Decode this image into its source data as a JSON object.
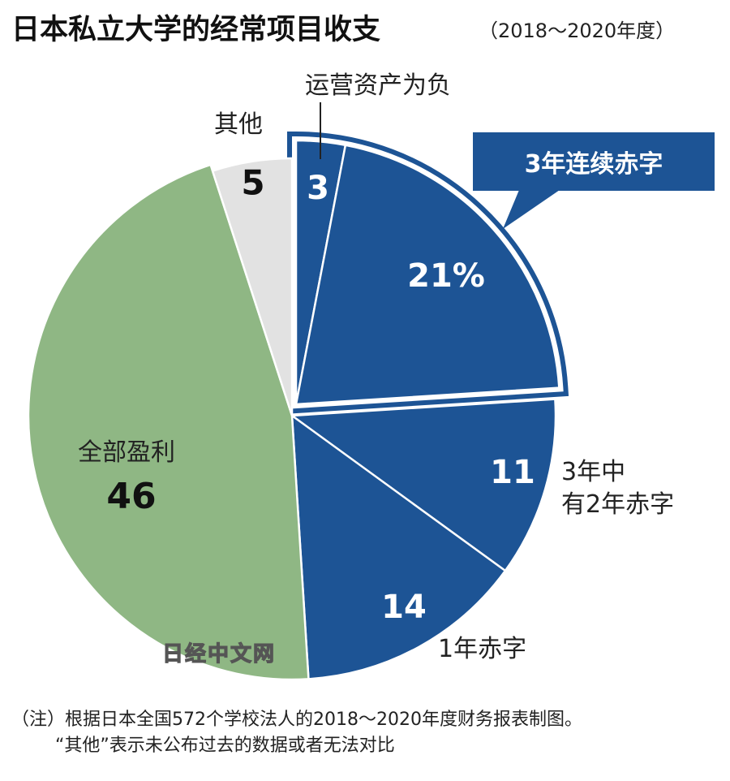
{
  "chart_data": {
    "type": "pie",
    "title": "日本私立大学的经常项目收支",
    "subtitle": "（2018～2020年度）",
    "categories": [
      "运营资产为负",
      "3年连续赤字",
      "3年中\n有2年赤字",
      "1年赤字",
      "全部盈利",
      "其他"
    ],
    "values": [
      3,
      21,
      11,
      14,
      46,
      5
    ],
    "value_labels": [
      "3",
      "21%",
      "11",
      "14",
      "46",
      "5"
    ],
    "colors": [
      "#1d5495",
      "#1d5495",
      "#1d5495",
      "#1d5495",
      "#8fb784",
      "#e2e2e2"
    ],
    "watermark": "日经中文网",
    "notes": [
      "（注）根据日本全国572个学校法人的2018～2020年度财务报表制图。",
      "“其他”表示未公布过去的数据或者无法对比"
    ]
  }
}
